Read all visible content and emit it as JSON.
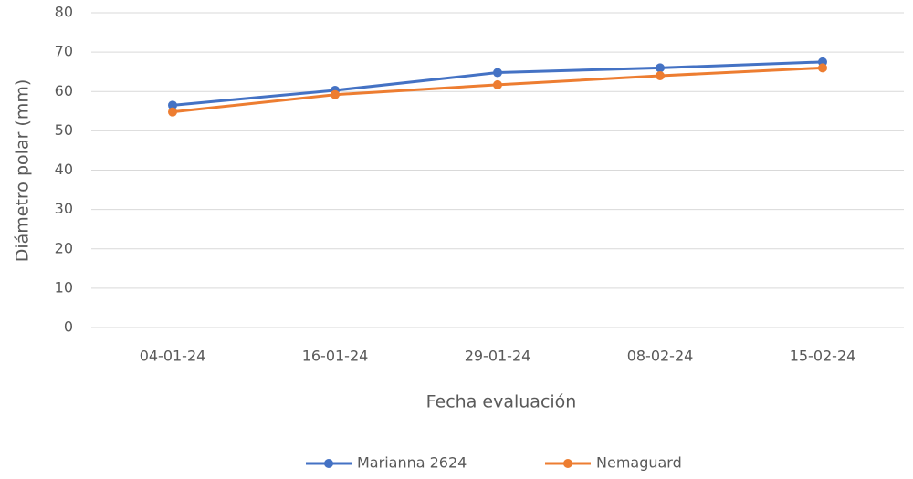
{
  "chart_data": {
    "type": "line",
    "x_label": "Fecha evaluación",
    "y_label": "Diámetro polar (mm)",
    "categories": [
      "04-01-24",
      "16-01-24",
      "29-01-24",
      "08-02-24",
      "15-02-24"
    ],
    "series": [
      {
        "name": "Marianna 2624",
        "color": "#4472c4",
        "values": [
          56.5,
          60.3,
          64.8,
          66,
          67.5
        ]
      },
      {
        "name": "Nemaguard",
        "color": "#ed7d31",
        "values": [
          54.8,
          59.2,
          61.7,
          64,
          66
        ]
      }
    ],
    "ylim": [
      0,
      80
    ],
    "yticks": [
      0,
      10,
      20,
      30,
      40,
      50,
      60,
      70,
      80
    ],
    "grid": true,
    "legend": "bottom"
  }
}
